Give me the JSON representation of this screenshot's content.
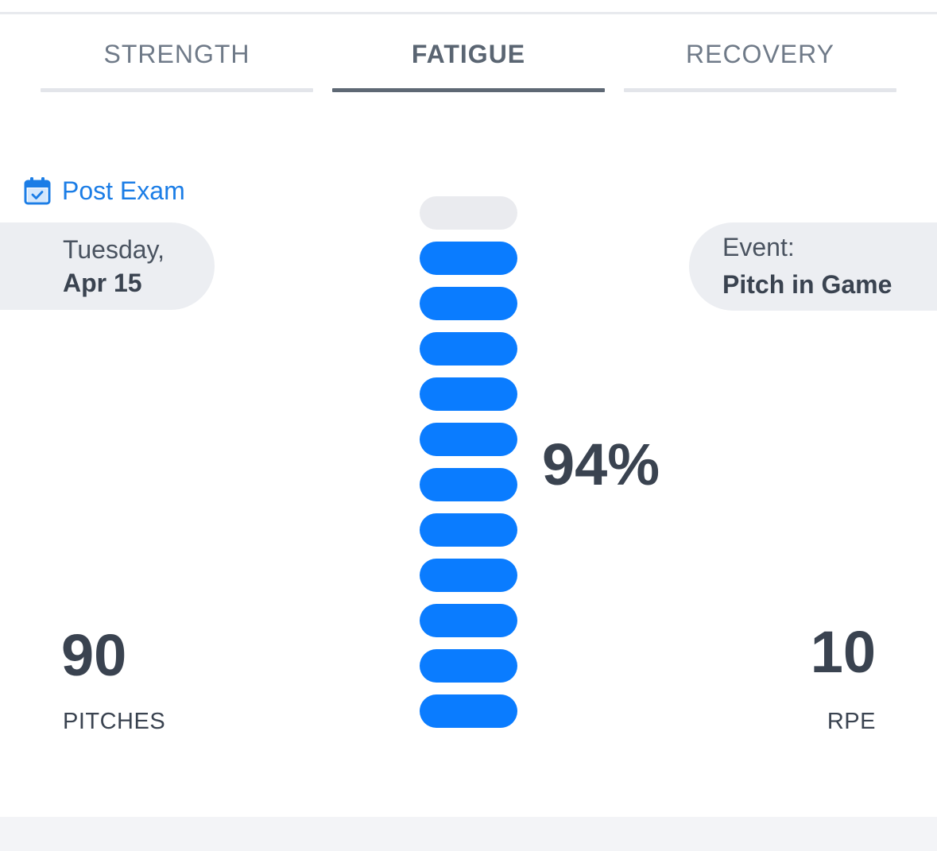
{
  "tabs": [
    {
      "label": "STRENGTH",
      "active": false
    },
    {
      "label": "FATIGUE",
      "active": true
    },
    {
      "label": "RECOVERY",
      "active": false
    }
  ],
  "exam": {
    "label": "Post Exam",
    "icon": "calendar-check-icon"
  },
  "date": {
    "weekday": "Tuesday,",
    "monthday": "Apr 15"
  },
  "event": {
    "label": "Event:",
    "value": "Pitch in Game"
  },
  "fatigue": {
    "percent_label": "94%",
    "percent_value": 94,
    "segments_total": 12,
    "segments_filled": 11
  },
  "stats": {
    "pitches_value": "90",
    "pitches_label": "PITCHES",
    "rpe_value": "10",
    "rpe_label": "RPE"
  },
  "colors": {
    "accent": "#0a7cff",
    "link": "#1b7de6",
    "text": "#3a4350",
    "pill_bg": "#eceef2",
    "empty_segment": "#eaebef",
    "active_tab_underline": "#5e6874"
  }
}
